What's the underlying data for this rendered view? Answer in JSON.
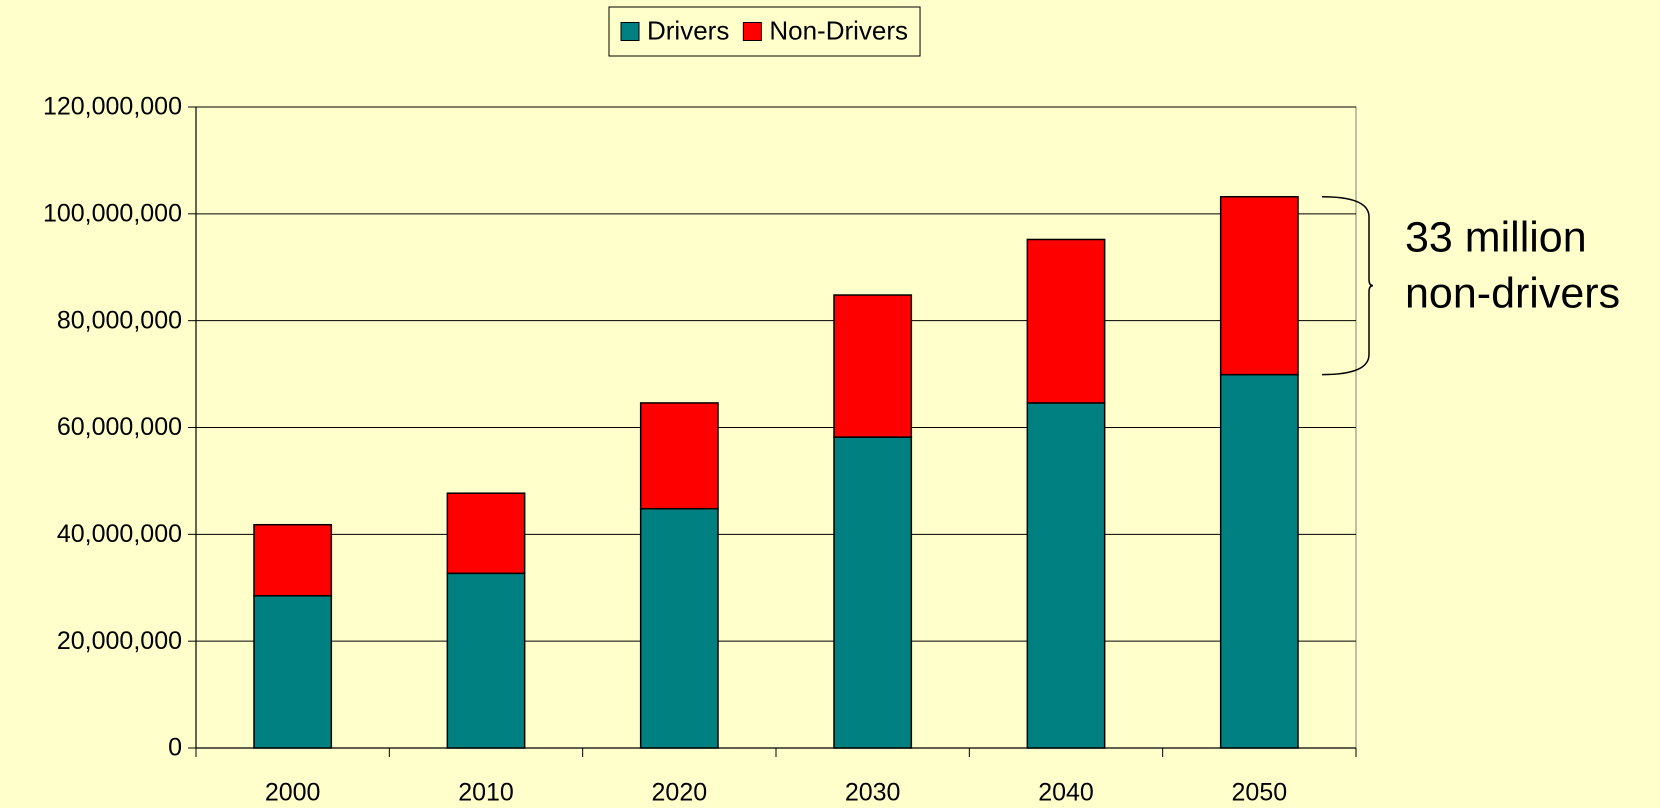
{
  "chart_data": {
    "type": "stacked-bar",
    "categories": [
      "2000",
      "2010",
      "2020",
      "2030",
      "2040",
      "2050"
    ],
    "series": [
      {
        "name": "Drivers",
        "color": "#008080",
        "values": [
          28500000,
          32700000,
          44800000,
          58200000,
          64600000,
          69900000
        ]
      },
      {
        "name": "Non-Drivers",
        "color": "#ff0000",
        "values": [
          13300000,
          15000000,
          19800000,
          26600000,
          30600000,
          33300000
        ]
      }
    ],
    "ylim": [
      0,
      120000000
    ],
    "yticks": [
      0,
      {
        "value": 20000000,
        "label": "20,000,000"
      },
      {
        "value": 40000000,
        "label": "40,000,000"
      },
      {
        "value": 60000000,
        "label": "60,000,000"
      },
      {
        "value": 80000000,
        "label": "80,000,000"
      },
      {
        "value": 100000000,
        "label": "100,000,000"
      },
      {
        "value": 120000000,
        "label": "120,000,000"
      }
    ],
    "grid": true,
    "legend": "top",
    "annotation": [
      "33 million",
      "non-drivers"
    ]
  }
}
